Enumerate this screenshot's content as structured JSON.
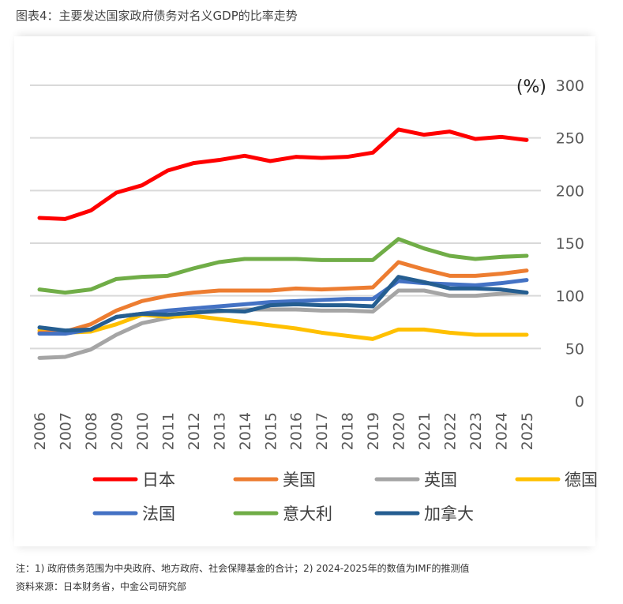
{
  "title": "图表4：主要发达国家政府债务对名义GDP的比率走势",
  "notes": {
    "note": "注：1) 政府债务范围为中央政府、地方政府、社会保障基金的合计；2) 2024-2025年的数值为IMF的推测值",
    "source": "资料来源：日本财务省，中金公司研究部"
  },
  "chart_data": {
    "type": "line",
    "title": "",
    "xlabel": "",
    "ylabel": "",
    "unit_label": "(%)",
    "y_axis_position": "right",
    "ylim": [
      0,
      300
    ],
    "yticks": [
      0,
      50,
      100,
      150,
      200,
      250,
      300
    ],
    "grid": true,
    "legend_position": "bottom",
    "x": [
      "2006",
      "2007",
      "2008",
      "2009",
      "2010",
      "2011",
      "2012",
      "2013",
      "2014",
      "2015",
      "2016",
      "2017",
      "2018",
      "2019",
      "2020",
      "2021",
      "2022",
      "2023",
      "2024",
      "2025"
    ],
    "series": [
      {
        "name": "日本",
        "color": "#FF0000",
        "values": [
          174,
          173,
          181,
          198,
          205,
          219,
          226,
          229,
          233,
          228,
          232,
          231,
          232,
          236,
          258,
          253,
          256,
          249,
          251,
          248
        ]
      },
      {
        "name": "美国",
        "color": "#ED7D31",
        "values": [
          65,
          66,
          73,
          86,
          95,
          100,
          103,
          105,
          105,
          105,
          107,
          106,
          107,
          108,
          132,
          125,
          119,
          119,
          121,
          124
        ]
      },
      {
        "name": "英国",
        "color": "#A5A5A5",
        "values": [
          41,
          42,
          49,
          63,
          74,
          79,
          84,
          85,
          87,
          87,
          87,
          86,
          86,
          85,
          105,
          105,
          100,
          100,
          102,
          103
        ]
      },
      {
        "name": "德国",
        "color": "#FFC000",
        "values": [
          67,
          65,
          66,
          73,
          82,
          80,
          81,
          78,
          75,
          72,
          69,
          65,
          62,
          59,
          68,
          68,
          65,
          63,
          63,
          63
        ]
      },
      {
        "name": "法国",
        "color": "#4472C4",
        "values": [
          64,
          64,
          68,
          80,
          83,
          86,
          88,
          90,
          92,
          94,
          95,
          96,
          97,
          97,
          114,
          112,
          111,
          110,
          112,
          115
        ]
      },
      {
        "name": "意大利",
        "color": "#70AD47",
        "values": [
          106,
          103,
          106,
          116,
          118,
          119,
          126,
          132,
          135,
          135,
          135,
          134,
          134,
          134,
          154,
          145,
          138,
          135,
          137,
          138
        ]
      },
      {
        "name": "加拿大",
        "color": "#255E91",
        "values": [
          70,
          67,
          68,
          80,
          83,
          82,
          84,
          86,
          85,
          91,
          92,
          91,
          91,
          90,
          118,
          113,
          107,
          107,
          106,
          103
        ]
      }
    ]
  }
}
